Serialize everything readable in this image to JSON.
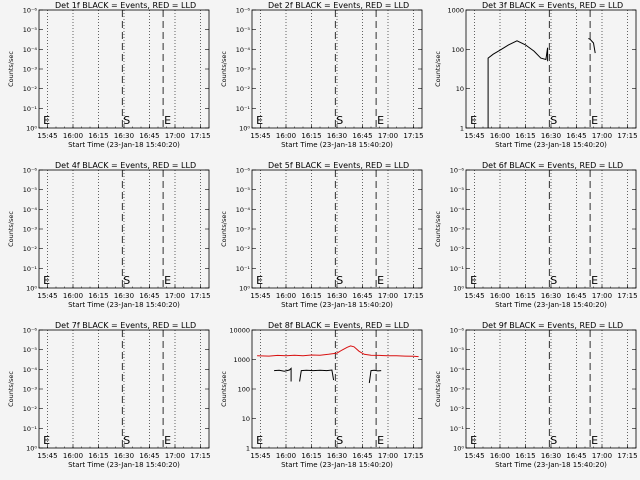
{
  "figure": {
    "background": "#f4f4f4",
    "line_color": "#000000",
    "lld_color": "#d81010"
  },
  "chart_data": [
    {
      "type": "line",
      "title": "Det 1f BLACK = Events, RED = LLD",
      "xlabel": "Start Time (23-Jan-18 15:40:20)",
      "ylabel": "Counts/sec",
      "log_y": true,
      "ylim_exp": [
        0,
        6
      ],
      "y_ticks": [
        {
          "e": 0,
          "label": "10⁰"
        },
        {
          "e": 1,
          "label": "10⁻¹"
        },
        {
          "e": 2,
          "label": "10⁻²"
        },
        {
          "e": 3,
          "label": "10⁻³"
        },
        {
          "e": 4,
          "label": "10⁻⁴"
        },
        {
          "e": 5,
          "label": "10⁻⁵"
        },
        {
          "e": 6,
          "label": "10⁻⁶"
        }
      ],
      "x_ticks": [
        "15:45",
        "16:00",
        "16:15",
        "16:30",
        "16:45",
        "17:00",
        "17:15"
      ],
      "grid": "dotted vertical",
      "markers": [
        {
          "label": "E",
          "time": "15:43"
        },
        {
          "label": "S",
          "time": "16:29"
        },
        {
          "label": "E",
          "time": "16:53"
        }
      ],
      "series": []
    },
    {
      "type": "line",
      "title": "Det 2f BLACK = Events, RED = LLD",
      "xlabel": "Start Time (23-Jan-18 15:40:20)",
      "ylabel": "Counts/sec",
      "log_y": true,
      "ylim_exp": [
        0,
        6
      ],
      "y_ticks": [
        {
          "e": 0,
          "label": "10⁰"
        },
        {
          "e": 1,
          "label": "10⁻¹"
        },
        {
          "e": 2,
          "label": "10⁻²"
        },
        {
          "e": 3,
          "label": "10⁻³"
        },
        {
          "e": 4,
          "label": "10⁻⁴"
        },
        {
          "e": 5,
          "label": "10⁻⁵"
        },
        {
          "e": 6,
          "label": "10⁻⁶"
        }
      ],
      "x_ticks": [
        "15:45",
        "16:00",
        "16:15",
        "16:30",
        "16:45",
        "17:00",
        "17:15"
      ],
      "grid": "dotted vertical",
      "markers": [
        {
          "label": "E",
          "time": "15:43"
        },
        {
          "label": "S",
          "time": "16:29"
        },
        {
          "label": "E",
          "time": "16:53"
        }
      ],
      "series": []
    },
    {
      "type": "line",
      "title": "Det 3f BLACK = Events, RED = LLD",
      "xlabel": "Start Time (23-Jan-18 15:40:20)",
      "ylabel": "Counts/sec",
      "log_y": true,
      "ylim_exp": [
        0,
        3
      ],
      "y_ticks": [
        {
          "e": 0,
          "label": "1"
        },
        {
          "e": 1,
          "label": "10"
        },
        {
          "e": 2,
          "label": "100"
        },
        {
          "e": 3,
          "label": "1000"
        }
      ],
      "x_ticks": [
        "15:45",
        "16:00",
        "16:15",
        "16:30",
        "16:45",
        "17:00",
        "17:15"
      ],
      "grid": "dotted vertical",
      "markers": [
        {
          "label": "E",
          "time": "15:43"
        },
        {
          "label": "S",
          "time": "16:29"
        },
        {
          "label": "E",
          "time": "16:53"
        }
      ],
      "series": [
        {
          "color": "black",
          "segments": [
            [
              [
                "15:53",
                "1"
              ],
              [
                "15:53",
                "60"
              ],
              [
                "15:56",
                "75"
              ],
              [
                "16:00",
                "95"
              ],
              [
                "16:05",
                "130"
              ],
              [
                "16:10",
                "165"
              ],
              [
                "16:15",
                "130"
              ],
              [
                "16:20",
                "90"
              ],
              [
                "16:24",
                "60"
              ],
              [
                "16:27",
                "55"
              ],
              [
                "16:28",
                "110"
              ],
              [
                "16:28",
                "50"
              ]
            ],
            [
              [
                "16:52",
                "190"
              ],
              [
                "16:53",
                "180"
              ],
              [
                "16:55",
                "145"
              ],
              [
                "16:56",
                "80"
              ]
            ]
          ]
        }
      ]
    },
    {
      "type": "line",
      "title": "Det 4f BLACK = Events, RED = LLD",
      "xlabel": "Start Time (23-Jan-18 15:40:20)",
      "ylabel": "Counts/sec",
      "log_y": true,
      "ylim_exp": [
        0,
        6
      ],
      "y_ticks": [
        {
          "e": 0,
          "label": "10⁰"
        },
        {
          "e": 1,
          "label": "10⁻¹"
        },
        {
          "e": 2,
          "label": "10⁻²"
        },
        {
          "e": 3,
          "label": "10⁻³"
        },
        {
          "e": 4,
          "label": "10⁻⁴"
        },
        {
          "e": 5,
          "label": "10⁻⁵"
        },
        {
          "e": 6,
          "label": "10⁻⁶"
        }
      ],
      "x_ticks": [
        "15:45",
        "16:00",
        "16:15",
        "16:30",
        "16:45",
        "17:00",
        "17:15"
      ],
      "grid": "dotted vertical",
      "markers": [
        {
          "label": "E",
          "time": "15:43"
        },
        {
          "label": "S",
          "time": "16:29"
        },
        {
          "label": "E",
          "time": "16:53"
        }
      ],
      "series": []
    },
    {
      "type": "line",
      "title": "Det 5f BLACK = Events, RED = LLD",
      "xlabel": "Start Time (23-Jan-18 15:40:20)",
      "ylabel": "Counts/sec",
      "log_y": true,
      "ylim_exp": [
        0,
        6
      ],
      "y_ticks": [
        {
          "e": 0,
          "label": "10⁰"
        },
        {
          "e": 1,
          "label": "10⁻¹"
        },
        {
          "e": 2,
          "label": "10⁻²"
        },
        {
          "e": 3,
          "label": "10⁻³"
        },
        {
          "e": 4,
          "label": "10⁻⁴"
        },
        {
          "e": 5,
          "label": "10⁻⁵"
        },
        {
          "e": 6,
          "label": "10⁻⁶"
        }
      ],
      "x_ticks": [
        "15:45",
        "16:00",
        "16:15",
        "16:30",
        "16:45",
        "17:00",
        "17:15"
      ],
      "grid": "dotted vertical",
      "markers": [
        {
          "label": "E",
          "time": "15:43"
        },
        {
          "label": "S",
          "time": "16:29"
        },
        {
          "label": "E",
          "time": "16:53"
        }
      ],
      "series": []
    },
    {
      "type": "line",
      "title": "Det 6f BLACK = Events, RED = LLD",
      "xlabel": "Start Time (23-Jan-18 15:40:20)",
      "ylabel": "Counts/sec",
      "log_y": true,
      "ylim_exp": [
        0,
        6
      ],
      "y_ticks": [
        {
          "e": 0,
          "label": "10⁰"
        },
        {
          "e": 1,
          "label": "10⁻¹"
        },
        {
          "e": 2,
          "label": "10⁻²"
        },
        {
          "e": 3,
          "label": "10⁻³"
        },
        {
          "e": 4,
          "label": "10⁻⁴"
        },
        {
          "e": 5,
          "label": "10⁻⁵"
        },
        {
          "e": 6,
          "label": "10⁻⁶"
        }
      ],
      "x_ticks": [
        "15:45",
        "16:00",
        "16:15",
        "16:30",
        "16:45",
        "17:00",
        "17:15"
      ],
      "grid": "dotted vertical",
      "markers": [
        {
          "label": "E",
          "time": "15:43"
        },
        {
          "label": "S",
          "time": "16:29"
        },
        {
          "label": "E",
          "time": "16:53"
        }
      ],
      "series": []
    },
    {
      "type": "line",
      "title": "Det 7f BLACK = Events, RED = LLD",
      "xlabel": "Start Time (23-Jan-18 15:40:20)",
      "ylabel": "Counts/sec",
      "log_y": true,
      "ylim_exp": [
        0,
        6
      ],
      "y_ticks": [
        {
          "e": 0,
          "label": "10⁰"
        },
        {
          "e": 1,
          "label": "10⁻¹"
        },
        {
          "e": 2,
          "label": "10⁻²"
        },
        {
          "e": 3,
          "label": "10⁻³"
        },
        {
          "e": 4,
          "label": "10⁻⁴"
        },
        {
          "e": 5,
          "label": "10⁻⁵"
        },
        {
          "e": 6,
          "label": "10⁻⁶"
        }
      ],
      "x_ticks": [
        "15:45",
        "16:00",
        "16:15",
        "16:30",
        "16:45",
        "17:00",
        "17:15"
      ],
      "grid": "dotted vertical",
      "markers": [
        {
          "label": "E",
          "time": "15:43"
        },
        {
          "label": "S",
          "time": "16:29"
        },
        {
          "label": "E",
          "time": "16:53"
        }
      ],
      "series": []
    },
    {
      "type": "line",
      "title": "Det 8f BLACK = Events, RED = LLD",
      "xlabel": "Start Time (23-Jan-18 15:40:20)",
      "ylabel": "Counts/sec",
      "log_y": true,
      "ylim_exp": [
        0,
        4
      ],
      "y_ticks": [
        {
          "e": 0,
          "label": "1"
        },
        {
          "e": 1,
          "label": "10"
        },
        {
          "e": 2,
          "label": "100"
        },
        {
          "e": 3,
          "label": "1000"
        },
        {
          "e": 4,
          "label": "10000"
        }
      ],
      "x_ticks": [
        "15:45",
        "16:00",
        "16:15",
        "16:30",
        "16:45",
        "17:00",
        "17:15"
      ],
      "grid": "dotted vertical",
      "markers": [
        {
          "label": "E",
          "time": "15:43"
        },
        {
          "label": "S",
          "time": "16:29"
        },
        {
          "label": "E",
          "time": "16:53"
        }
      ],
      "series": [
        {
          "color": "red",
          "segments": [
            [
              [
                "15:43",
                "1350"
              ],
              [
                "15:50",
                "1300"
              ],
              [
                "15:55",
                "1380"
              ],
              [
                "16:00",
                "1340"
              ],
              [
                "16:05",
                "1400"
              ],
              [
                "16:10",
                "1350"
              ],
              [
                "16:15",
                "1420"
              ],
              [
                "16:20",
                "1400"
              ],
              [
                "16:25",
                "1500"
              ],
              [
                "16:30",
                "1650"
              ],
              [
                "16:33",
                "2100"
              ],
              [
                "16:36",
                "2600"
              ],
              [
                "16:38",
                "2900"
              ],
              [
                "16:40",
                "2700"
              ],
              [
                "16:43",
                "1900"
              ],
              [
                "16:46",
                "1500"
              ],
              [
                "16:50",
                "1400"
              ],
              [
                "16:55",
                "1380"
              ],
              [
                "17:00",
                "1350"
              ],
              [
                "17:05",
                "1340"
              ],
              [
                "17:10",
                "1300"
              ],
              [
                "17:15",
                "1280"
              ],
              [
                "17:18",
                "1250"
              ]
            ]
          ]
        },
        {
          "color": "black",
          "segments": [
            [
              [
                "15:53",
                "420"
              ],
              [
                "15:56",
                "430"
              ],
              [
                "15:59",
                "400"
              ],
              [
                "16:02",
                "440"
              ],
              [
                "16:03",
                "500"
              ],
              [
                "16:03",
                "180"
              ]
            ],
            [
              [
                "16:08",
                "180"
              ],
              [
                "16:09",
                "420"
              ],
              [
                "16:12",
                "430"
              ],
              [
                "16:16",
                "420"
              ],
              [
                "16:20",
                "430"
              ],
              [
                "16:24",
                "420"
              ],
              [
                "16:27",
                "440"
              ],
              [
                "16:28",
                "200"
              ]
            ],
            [
              [
                "16:49",
                "160"
              ],
              [
                "16:50",
                "420"
              ],
              [
                "16:52",
                "430"
              ],
              [
                "16:54",
                "410"
              ],
              [
                "16:56",
                "420"
              ]
            ]
          ]
        }
      ]
    },
    {
      "type": "line",
      "title": "Det 9f BLACK = Events, RED = LLD",
      "xlabel": "Start Time (23-Jan-18 15:40:20)",
      "ylabel": "Counts/sec",
      "log_y": true,
      "ylim_exp": [
        0,
        6
      ],
      "y_ticks": [
        {
          "e": 0,
          "label": "10⁰"
        },
        {
          "e": 1,
          "label": "10⁻¹"
        },
        {
          "e": 2,
          "label": "10⁻²"
        },
        {
          "e": 3,
          "label": "10⁻³"
        },
        {
          "e": 4,
          "label": "10⁻⁴"
        },
        {
          "e": 5,
          "label": "10⁻⁵"
        },
        {
          "e": 6,
          "label": "10⁻⁶"
        }
      ],
      "x_ticks": [
        "15:45",
        "16:00",
        "16:15",
        "16:30",
        "16:45",
        "17:00",
        "17:15"
      ],
      "grid": "dotted vertical",
      "markers": [
        {
          "label": "E",
          "time": "15:43"
        },
        {
          "label": "S",
          "time": "16:29"
        },
        {
          "label": "E",
          "time": "16:53"
        }
      ],
      "series": []
    }
  ]
}
